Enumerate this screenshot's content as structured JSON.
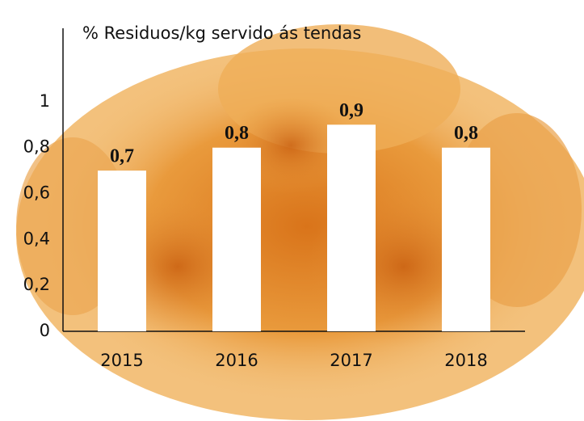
{
  "chart_data": {
    "type": "bar",
    "title": "% Residuos/kg servido ás tendas",
    "categories": [
      "2015",
      "2016",
      "2017",
      "2018"
    ],
    "values": [
      0.7,
      0.8,
      0.9,
      0.8
    ],
    "value_labels": [
      "0,7",
      "0,8",
      "0,9",
      "0,8"
    ],
    "color": "#ffffff",
    "ylim": [
      0,
      1.32
    ],
    "yticks": [
      0,
      {
        "value": 0.2,
        "label": "0,2"
      },
      {
        "value": 0.4,
        "label": "0,4"
      },
      {
        "value": 0.6,
        "label": "0,6"
      },
      {
        "value": 0.8,
        "label": "0,8"
      },
      1
    ],
    "grid": false
  }
}
